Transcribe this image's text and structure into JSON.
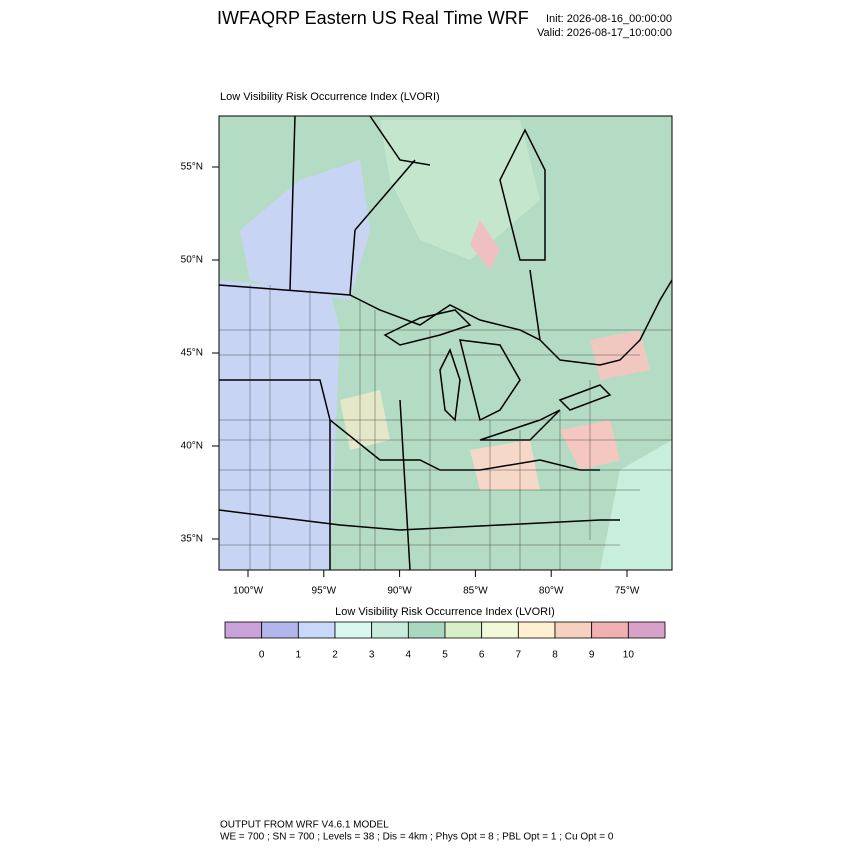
{
  "header": {
    "title": "IWFAQRP Eastern US Real Time WRF",
    "init": "Init: 2026-08-16_00:00:00",
    "valid": "Valid: 2026-08-17_10:00:00"
  },
  "map": {
    "subtitle": "Low Visibility Risk Occurrence Index   (LVORI)",
    "lat_ticks": [
      {
        "value": 55,
        "label": "55°N"
      },
      {
        "value": 50,
        "label": "50°N"
      },
      {
        "value": 45,
        "label": "45°N"
      },
      {
        "value": 40,
        "label": "40°N"
      },
      {
        "value": 35,
        "label": "35°N"
      }
    ],
    "lon_ticks": [
      {
        "value": -100,
        "label": "100°W"
      },
      {
        "value": -95,
        "label": "95°W"
      },
      {
        "value": -90,
        "label": "90°W"
      },
      {
        "value": -85,
        "label": "85°W"
      },
      {
        "value": -80,
        "label": "80°W"
      },
      {
        "value": -75,
        "label": "75°W"
      }
    ]
  },
  "colorbar": {
    "title": "Low Visibility Risk Occurrence Index  (LVORI)",
    "colors": [
      "#c8a2d8",
      "#b2b6ea",
      "#c8d8fa",
      "#d8f8f0",
      "#c8ecdc",
      "#a8d8c0",
      "#d8f0c8",
      "#f0fad8",
      "#fff0d0",
      "#f8d0c0",
      "#f0b0b0",
      "#d8a2c8"
    ],
    "labels": [
      0,
      1,
      2,
      3,
      4,
      5,
      6,
      7,
      8,
      9,
      10
    ]
  },
  "footer": {
    "lines": [
      "OUTPUT FROM WRF V4.6.1 MODEL",
      "WE = 700 ; SN = 700 ; Levels = 38 ; Dis = 4km ; Phys Opt = 8 ; PBL Opt = 1 ; Cu Opt = 0"
    ]
  }
}
